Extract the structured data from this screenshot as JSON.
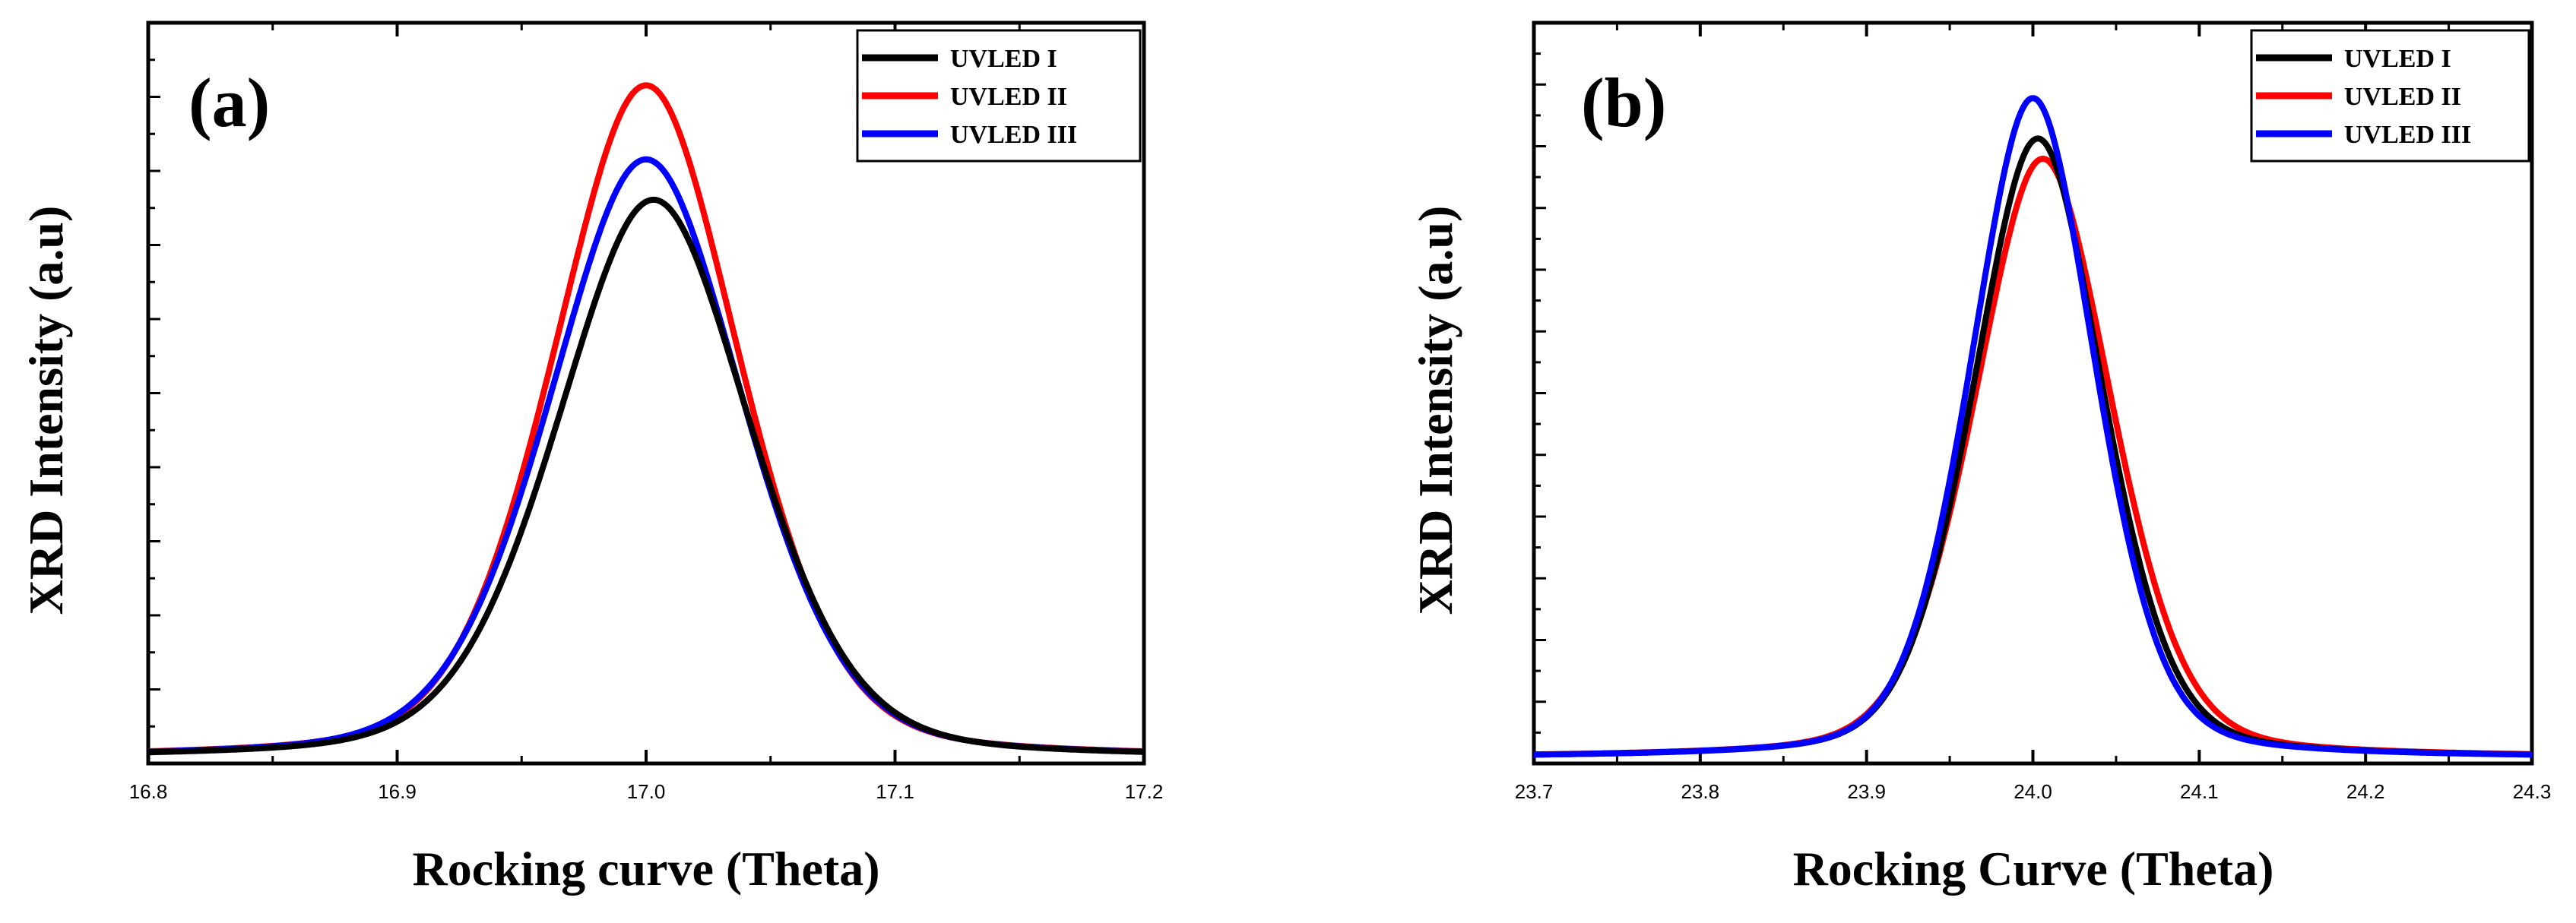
{
  "chart_data": [
    {
      "type": "line",
      "panel_label": "(a)",
      "xlabel": "Rocking curve (Theta)",
      "ylabel": "XRD Intensity (a.u)",
      "xlim": [
        16.8,
        17.2
      ],
      "ylim": [
        0,
        1.0
      ],
      "x_ticks": [
        "16.8",
        "16.9",
        "17.0",
        "17.1",
        "17.2"
      ],
      "y_tick_labels_shown": false,
      "legend_position": "top-right",
      "series": [
        {
          "name": "UVLED I",
          "color": "#000000",
          "peak_center": 17.003,
          "peak_height": 0.83,
          "peak_width": 0.052,
          "background": 0.003
        },
        {
          "name": "UVLED II",
          "color": "#ff0000",
          "peak_center": 17.0,
          "peak_height": 1.0,
          "peak_width": 0.05,
          "background": 0.003
        },
        {
          "name": "UVLED III",
          "color": "#0000ff",
          "peak_center": 17.0,
          "peak_height": 0.89,
          "peak_width": 0.052,
          "background": 0.003
        }
      ]
    },
    {
      "type": "line",
      "panel_label": "(b)",
      "xlabel": "Rocking Curve (Theta)",
      "ylabel": "XRD Intensity (a.u)",
      "xlim": [
        23.7,
        24.3
      ],
      "ylim": [
        0,
        1.0
      ],
      "x_ticks": [
        "23.7",
        "23.8",
        "23.9",
        "24.0",
        "24.1",
        "24.2",
        "24.3"
      ],
      "y_tick_labels_shown": false,
      "legend_position": "top-right",
      "series": [
        {
          "name": "UVLED I",
          "color": "#000000",
          "peak_center": 24.003,
          "peak_height": 0.92,
          "peak_width": 0.052,
          "background": 0.004
        },
        {
          "name": "UVLED II",
          "color": "#ff0000",
          "peak_center": 24.006,
          "peak_height": 0.89,
          "peak_width": 0.055,
          "background": 0.004
        },
        {
          "name": "UVLED III",
          "color": "#0000ff",
          "peak_center": 24.0,
          "peak_height": 0.98,
          "peak_width": 0.05,
          "background": 0.004
        }
      ]
    }
  ]
}
